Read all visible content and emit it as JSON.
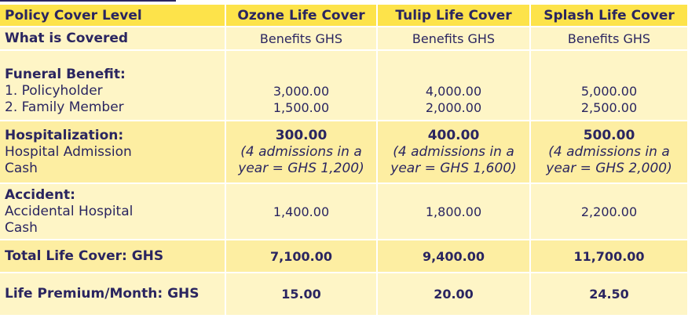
{
  "header": {
    "level_label": "Policy Cover Level",
    "plans": [
      "Ozone Life Cover",
      "Tulip Life Cover",
      "Splash Life Cover"
    ]
  },
  "covered": {
    "label": "What is Covered",
    "values": [
      "Benefits GHS",
      "Benefits GHS",
      "Benefits GHS"
    ]
  },
  "funeral": {
    "title": "Funeral Benefit:",
    "line1": "1. Policyholder",
    "line2": "2. Family Member",
    "plans": [
      {
        "policyholder": "3,000.00",
        "family": "1,500.00"
      },
      {
        "policyholder": "4,000.00",
        "family": "2,000.00"
      },
      {
        "policyholder": "5,000.00",
        "family": "2,500.00"
      }
    ]
  },
  "hospitalization": {
    "title": "Hospitalization:",
    "line1": "Hospital Admission",
    "line2": "Cash",
    "plans": [
      {
        "amount": "300.00",
        "note1": "(4 admissions in a",
        "note2": "year = GHS 1,200)"
      },
      {
        "amount": "400.00",
        "note1": "(4 admissions in a",
        "note2": "year = GHS 1,600)"
      },
      {
        "amount": "500.00",
        "note1": "(4 admissions in a",
        "note2": "year = GHS 2,000)"
      }
    ]
  },
  "accident": {
    "title": "Accident:",
    "line1": "Accidental Hospital",
    "line2": "Cash",
    "values": [
      "1,400.00",
      "1,800.00",
      "2,200.00"
    ]
  },
  "total": {
    "label": "Total Life Cover: GHS",
    "values": [
      "7,100.00",
      "9,400.00",
      "11,700.00"
    ]
  },
  "premium": {
    "label": "Life Premium/Month: GHS",
    "values": [
      "15.00",
      "20.00",
      "24.50"
    ]
  },
  "colors": {
    "header_bg": "#fde34a",
    "row_light": "#fef5c6",
    "row_dark": "#fdeea2",
    "text": "#2a2560"
  }
}
